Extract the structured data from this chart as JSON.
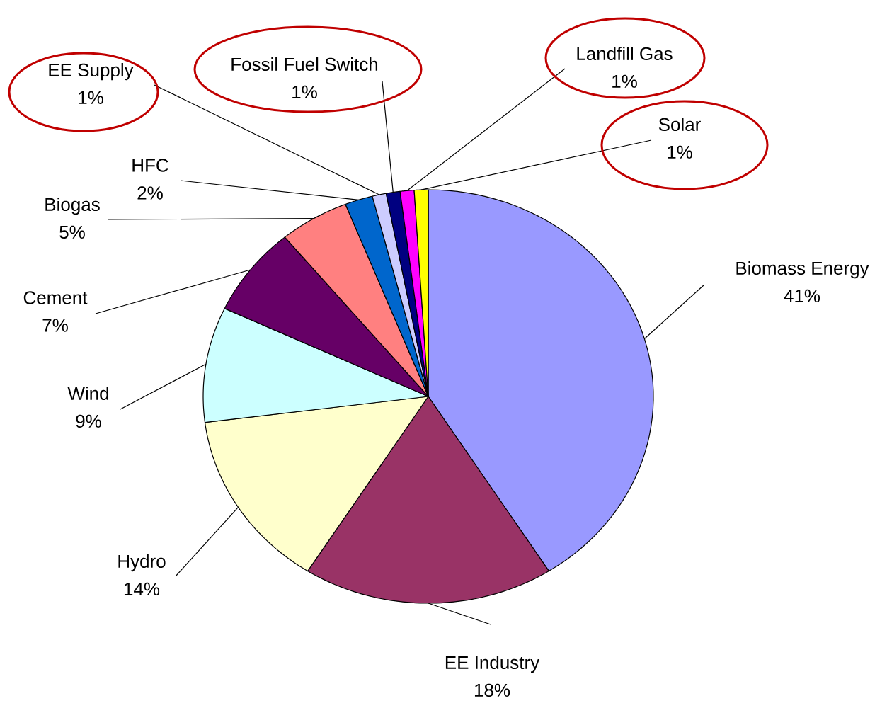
{
  "chart_data": {
    "type": "pie",
    "categories": [
      "Biomass Energy",
      "EE Industry",
      "Hydro",
      "Wind",
      "Cement",
      "Biogas",
      "HFC",
      "EE Supply",
      "Fossil Fuel Switch",
      "Landfill Gas",
      "Solar"
    ],
    "values": [
      41,
      18,
      14,
      9,
      7,
      5,
      2,
      1,
      1,
      1,
      1
    ],
    "value_labels": [
      "41%",
      "18%",
      "14%",
      "9%",
      "7%",
      "5%",
      "2%",
      "1%",
      "1%",
      "1%",
      "1%"
    ],
    "colors": [
      "#9999ff",
      "#993366",
      "#ffffcc",
      "#ccffff",
      "#660066",
      "#ff8080",
      "#0066cc",
      "#ccccff",
      "#000080",
      "#ff00ff",
      "#ffff00"
    ]
  }
}
